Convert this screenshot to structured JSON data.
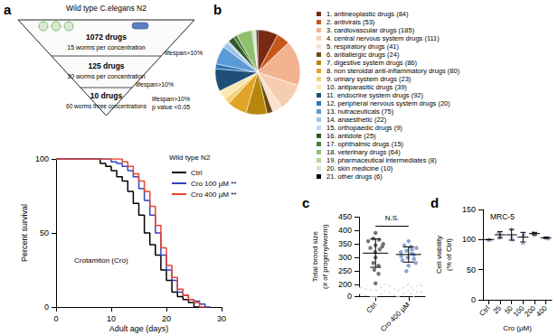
{
  "chart_data": [
    {
      "type": "funnel",
      "panel": "a",
      "title": "Wild type C.elegans N2",
      "stages": [
        {
          "label": "1072 drugs",
          "detail": "15 worms per concentration",
          "criterion": "lifespan>10%"
        },
        {
          "label": "125 drugs",
          "detail": "30 worms per concentration",
          "criterion": "lifespan>10%"
        },
        {
          "label": "10 drugs",
          "detail": "60 worms three concentrations",
          "criterion": "lifespan>10%\np value <0.05"
        }
      ]
    },
    {
      "type": "line",
      "xlabel": "Adult age (days)",
      "ylabel": "Percent survival",
      "legend_title": "Wild type N2",
      "legend": "top-right",
      "annotation": "Crotamiton (Cro)",
      "x": [
        0,
        1,
        2,
        3,
        4,
        5,
        6,
        7,
        8,
        9,
        10,
        11,
        12,
        13,
        14,
        15,
        16,
        17,
        18,
        19,
        20,
        21,
        22,
        23,
        24,
        25,
        26,
        27,
        28,
        29,
        30
      ],
      "xlim": [
        0,
        30
      ],
      "xticks": [
        0,
        10,
        20,
        30
      ],
      "ylim": [
        0,
        100
      ],
      "yticks": [
        0,
        50,
        100
      ],
      "grid": false,
      "line_style": "solid",
      "series": [
        {
          "name": "Ctrl",
          "color": "#000000",
          "values": [
            100,
            100,
            100,
            100,
            100,
            100,
            100,
            100,
            97,
            95,
            92,
            88,
            85,
            78,
            70,
            62,
            50,
            42,
            35,
            25,
            18,
            10,
            7,
            5,
            3,
            0,
            null,
            null,
            null,
            null,
            null
          ]
        },
        {
          "name": "Cro 100 µM **",
          "color": "#3341c0",
          "values": [
            100,
            100,
            100,
            100,
            100,
            100,
            100,
            100,
            100,
            100,
            98,
            97,
            95,
            92,
            88,
            80,
            72,
            62,
            50,
            35,
            25,
            18,
            10,
            8,
            5,
            4,
            2,
            0,
            null,
            null,
            null
          ]
        },
        {
          "name": "Cro 400 µM **",
          "color": "#e8452c",
          "values": [
            100,
            100,
            100,
            100,
            100,
            100,
            100,
            100,
            100,
            100,
            100,
            100,
            98,
            95,
            90,
            85,
            78,
            68,
            55,
            40,
            28,
            20,
            12,
            8,
            5,
            3,
            0,
            null,
            null,
            null,
            null
          ]
        }
      ]
    },
    {
      "type": "pie",
      "panel": "b",
      "legend": "right",
      "data_labels": false,
      "categories": [
        "1. antineoplastic drugs (84)",
        "2. antivirals (53)",
        "3. cardiovascular drugs (185)",
        "4. central nervous system drugs (111)",
        "5. respiratory drugs (41)",
        "6. antiallergic drugs (24)",
        "7. digestive system drugs (86)",
        "8. non steroidal anti-inflammatory drugs (80)",
        "9. urinary system drugs (23)",
        "10. antiparasitic drugs (39)",
        "11. endocrine system drugs (92)",
        "12. peripheral nervous system drugs (20)",
        "13. nutraceuticals (75)",
        "14. anaesthetic (22)",
        "15. orthopaedic drugs (9)",
        "16. antidote (25)",
        "17. ophthalmic drugs (15)",
        "18. veterinary drugs (64)",
        "19. pharmaceutical intermediates (8)",
        "20. skin medicine (10)",
        "21. other drugs (6)"
      ],
      "values": [
        84,
        53,
        185,
        111,
        41,
        24,
        86,
        80,
        23,
        39,
        92,
        20,
        75,
        22,
        9,
        25,
        15,
        64,
        8,
        10,
        6
      ],
      "colors": [
        "#7a2a12",
        "#c8561c",
        "#f2b38e",
        "#f6cdb0",
        "#f9e0cf",
        "#6b4a10",
        "#b8860b",
        "#e0a526",
        "#f2d27a",
        "#fbe7b0",
        "#1f4e79",
        "#2e75b6",
        "#5b9bd5",
        "#9dc3e6",
        "#c5d9ee",
        "#2d5a27",
        "#4f7f3a",
        "#8fbf6f",
        "#b5d69b",
        "#d4e8c2",
        "#000000"
      ]
    },
    {
      "type": "scatter",
      "panel": "c",
      "categories": [
        "Ctrl",
        "Cro 400 µM"
      ],
      "values": [
        [
          390,
          370,
          365,
          360,
          350,
          345,
          340,
          335,
          330,
          320,
          300,
          280,
          270,
          255,
          240,
          205
        ],
        [
          360,
          345,
          340,
          335,
          330,
          325,
          320,
          315,
          310,
          305,
          300,
          295,
          290,
          280,
          270,
          250
        ]
      ],
      "mean": [
        316,
        311
      ],
      "sd": [
        52,
        28
      ],
      "colors": [
        "#555555",
        "#6f8fc4"
      ],
      "marker": "circle",
      "ylabel": "Total brood size\n(# of progeny/worm)",
      "ylim": [
        0,
        450
      ],
      "yticks": [
        0,
        200,
        250,
        300,
        350,
        400,
        450
      ],
      "annotation": {
        "text": "N.S.",
        "y": 415
      },
      "grid": false
    },
    {
      "type": "scatter",
      "panel": "d",
      "title": "MRC-5",
      "categories": [
        "Ctrl",
        "25",
        "50",
        "100",
        "200",
        "400"
      ],
      "values": [
        [
          100,
          100,
          100
        ],
        [
          108,
          103,
          113
        ],
        [
          118,
          105,
          100
        ],
        [
          95,
          108,
          110
        ],
        [
          110,
          112,
          108
        ],
        [
          103,
          102,
          104
        ]
      ],
      "mean": [
        100,
        108,
        108,
        104,
        110,
        103
      ],
      "sd": [
        0,
        5,
        9,
        8,
        2,
        1
      ],
      "color": "#8e9cc0",
      "marker": "triangle",
      "xlabel": "Cro (µM)",
      "ylabel": "Cell viability\n(% of Ctrl)",
      "ylim": [
        0,
        150
      ],
      "yticks": [
        0,
        50,
        100,
        150
      ],
      "grid": false
    }
  ]
}
